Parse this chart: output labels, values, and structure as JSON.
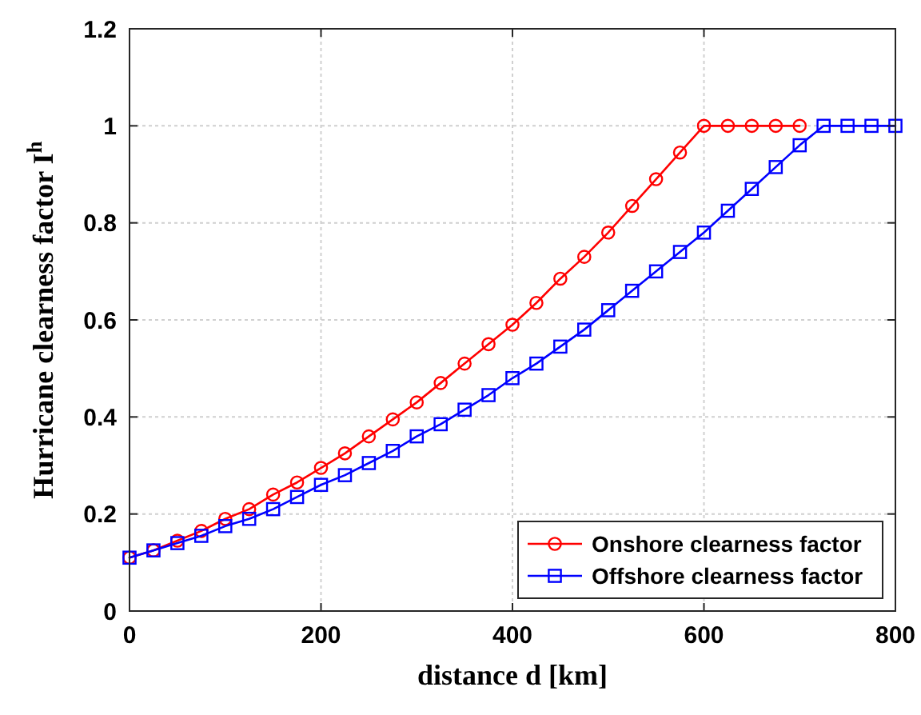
{
  "chart_data": {
    "type": "line",
    "xlabel": "distance d [km]",
    "ylabel": "Hurricane clearness factor I$^{h}$",
    "xlim": [
      0,
      800
    ],
    "xticks": [
      0,
      200,
      400,
      600,
      800
    ],
    "ylim": [
      0,
      1.2
    ],
    "yticks": [
      0,
      0.2,
      0.4,
      0.6,
      0.8,
      1,
      1.2
    ],
    "grid": true,
    "legend": "bottom right",
    "line_style": "solid",
    "series": [
      {
        "name": "Onshore clearness factor",
        "color": "#ff0000",
        "marker": "circle",
        "x": [
          0,
          25,
          50,
          75,
          100,
          125,
          150,
          175,
          200,
          225,
          250,
          275,
          300,
          325,
          350,
          375,
          400,
          425,
          450,
          475,
          500,
          525,
          550,
          575,
          600,
          625,
          650,
          675,
          700
        ],
        "values": [
          0.11,
          0.125,
          0.145,
          0.165,
          0.19,
          0.21,
          0.24,
          0.265,
          0.295,
          0.325,
          0.36,
          0.395,
          0.43,
          0.47,
          0.51,
          0.55,
          0.59,
          0.635,
          0.685,
          0.73,
          0.78,
          0.835,
          0.89,
          0.945,
          1,
          1,
          1,
          1,
          1
        ]
      },
      {
        "name": "Offshore clearness factor",
        "color": "#0000ff",
        "marker": "square",
        "x": [
          0,
          25,
          50,
          75,
          100,
          125,
          150,
          175,
          200,
          225,
          250,
          275,
          300,
          325,
          350,
          375,
          400,
          425,
          450,
          475,
          500,
          525,
          550,
          575,
          600,
          625,
          650,
          675,
          700,
          725,
          750,
          775,
          800
        ],
        "values": [
          0.11,
          0.125,
          0.14,
          0.155,
          0.175,
          0.19,
          0.21,
          0.235,
          0.26,
          0.28,
          0.305,
          0.33,
          0.36,
          0.385,
          0.415,
          0.445,
          0.48,
          0.51,
          0.545,
          0.58,
          0.62,
          0.66,
          0.7,
          0.74,
          0.78,
          0.825,
          0.87,
          0.915,
          0.96,
          1,
          1,
          1,
          1
        ]
      }
    ]
  }
}
